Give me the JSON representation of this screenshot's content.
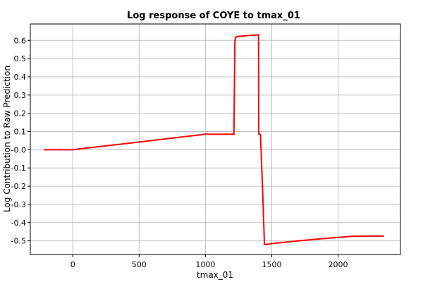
{
  "chart_data": {
    "type": "line",
    "title": "Log response of COYE to tmax_01",
    "xlabel": "tmax_01",
    "ylabel": "Log Contribution to Raw Prediction",
    "xlim": [
      -320,
      2470
    ],
    "ylim": [
      -0.575,
      0.69
    ],
    "x_ticks": [
      0,
      500,
      1000,
      1500,
      2000
    ],
    "x_tick_labels": [
      "0",
      "500",
      "1000",
      "1500",
      "2000"
    ],
    "y_ticks": [
      0.6,
      0.5,
      0.4,
      0.3,
      0.2,
      0.1,
      0.0,
      -0.1,
      -0.2,
      -0.3,
      -0.4,
      -0.5
    ],
    "y_tick_labels": [
      "0.6",
      "0.5",
      "0.4",
      "0.3",
      "0.2",
      "0.1",
      "-0.0",
      "-0.1",
      "-0.2",
      "-0.3",
      "-0.4",
      "-0.5"
    ],
    "grid": true,
    "line_color": "#ff0000",
    "series": [
      {
        "x": [
          -210,
          -100,
          0,
          100,
          200,
          400,
          600,
          800,
          1000,
          1200,
          1215,
          1222,
          1228,
          1235,
          1250,
          1300,
          1350,
          1400,
          1402,
          1406,
          1415,
          1430,
          1445,
          1460,
          1500,
          1700,
          1900,
          2100,
          2200,
          2340
        ],
        "y": [
          0.0,
          0.0,
          0.0,
          0.009,
          0.017,
          0.034,
          0.051,
          0.068,
          0.085,
          0.085,
          0.085,
          0.6,
          0.615,
          0.62,
          0.622,
          0.625,
          0.628,
          0.63,
          0.087,
          0.087,
          0.082,
          -0.2,
          -0.52,
          -0.52,
          -0.515,
          -0.5,
          -0.487,
          -0.475,
          -0.474,
          -0.474
        ]
      }
    ]
  }
}
